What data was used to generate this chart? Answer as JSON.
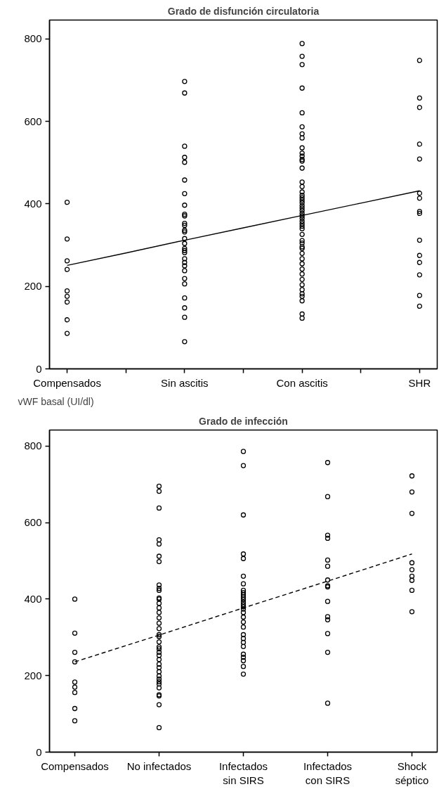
{
  "chart_data": [
    {
      "type": "scatter",
      "title": "Grado de disfunción circulatoria",
      "categories": [
        "Compensados",
        null,
        "Sin ascitis",
        null,
        "Con ascitis",
        null,
        "SHR"
      ],
      "ylim": [
        0,
        846
      ],
      "yticks": [
        0,
        200,
        400,
        600,
        800
      ],
      "marker": "circle",
      "series": [
        {
          "color": "#000000",
          "x": [
            "Compensados",
            "Compensados",
            "Compensados",
            "Compensados",
            "Compensados",
            "Compensados",
            "Compensados",
            "Compensados",
            "Compensados"
          ],
          "values": [
            404,
            315,
            262,
            241,
            189,
            176,
            162,
            119,
            86
          ]
        },
        {
          "color": "#000000",
          "x": [
            "Sin ascitis",
            "Sin ascitis",
            "Sin ascitis",
            "Sin ascitis",
            "Sin ascitis",
            "Sin ascitis",
            "Sin ascitis",
            "Sin ascitis",
            "Sin ascitis",
            "Sin ascitis",
            "Sin ascitis",
            "Sin ascitis",
            "Sin ascitis",
            "Sin ascitis",
            "Sin ascitis",
            "Sin ascitis",
            "Sin ascitis",
            "Sin ascitis",
            "Sin ascitis",
            "Sin ascitis",
            "Sin ascitis",
            "Sin ascitis",
            "Sin ascitis",
            "Sin ascitis",
            "Sin ascitis",
            "Sin ascitis",
            "Sin ascitis",
            "Sin ascitis",
            "Sin ascitis"
          ],
          "values": [
            697,
            669,
            540,
            513,
            501,
            458,
            425,
            397,
            375,
            371,
            353,
            348,
            336,
            332,
            316,
            304,
            292,
            287,
            282,
            267,
            258,
            250,
            238,
            219,
            206,
            172,
            148,
            125,
            66
          ]
        },
        {
          "color": "#000000",
          "x": [
            "Con ascitis",
            "Con ascitis",
            "Con ascitis",
            "Con ascitis",
            "Con ascitis",
            "Con ascitis",
            "Con ascitis",
            "Con ascitis",
            "Con ascitis",
            "Con ascitis",
            "Con ascitis",
            "Con ascitis",
            "Con ascitis",
            "Con ascitis",
            "Con ascitis",
            "Con ascitis",
            "Con ascitis",
            "Con ascitis",
            "Con ascitis",
            "Con ascitis",
            "Con ascitis",
            "Con ascitis",
            "Con ascitis",
            "Con ascitis",
            "Con ascitis",
            "Con ascitis",
            "Con ascitis",
            "Con ascitis",
            "Con ascitis",
            "Con ascitis",
            "Con ascitis",
            "Con ascitis",
            "Con ascitis",
            "Con ascitis",
            "Con ascitis",
            "Con ascitis",
            "Con ascitis",
            "Con ascitis",
            "Con ascitis",
            "Con ascitis",
            "Con ascitis",
            "Con ascitis",
            "Con ascitis",
            "Con ascitis",
            "Con ascitis",
            "Con ascitis",
            "Con ascitis",
            "Con ascitis",
            "Con ascitis"
          ],
          "values": [
            789,
            758,
            738,
            681,
            621,
            587,
            570,
            560,
            536,
            523,
            516,
            508,
            504,
            487,
            453,
            442,
            429,
            421,
            415,
            409,
            403,
            396,
            390,
            384,
            377,
            371,
            365,
            358,
            352,
            346,
            340,
            326,
            311,
            305,
            296,
            292,
            280,
            267,
            255,
            242,
            230,
            217,
            204,
            192,
            182,
            176,
            165,
            133,
            123
          ]
        },
        {
          "color": "#000000",
          "x": [
            "SHR",
            "SHR",
            "SHR",
            "SHR",
            "SHR",
            "SHR",
            "SHR",
            "SHR",
            "SHR",
            "SHR",
            "SHR",
            "SHR",
            "SHR",
            "SHR",
            "SHR"
          ],
          "values": [
            748,
            657,
            634,
            545,
            509,
            426,
            414,
            382,
            377,
            312,
            275,
            258,
            228,
            178,
            152
          ]
        },
        {
          "type": "line",
          "color": "#000000",
          "line_style": "solid",
          "marker": "none",
          "values": [
            251,
            281,
            312,
            342,
            372,
            402,
            432
          ]
        }
      ]
    },
    {
      "type": "scatter",
      "title": "Grado de infección",
      "ylabel": "vWF basal (UI/dl)",
      "categories": [
        "Compensados",
        "No infectados",
        "Infectados\nsin SIRS",
        "Infectados\ncon SIRS",
        "Shock\nséptico"
      ],
      "ylim": [
        0,
        842
      ],
      "yticks": [
        0,
        200,
        400,
        600,
        800
      ],
      "marker": "circle",
      "series": [
        {
          "color": "#000000",
          "x": [
            "Compensados",
            "Compensados",
            "Compensados",
            "Compensados",
            "Compensados",
            "Compensados",
            "Compensados",
            "Compensados",
            "Compensados"
          ],
          "values": [
            400,
            311,
            261,
            236,
            183,
            170,
            156,
            114,
            82
          ]
        },
        {
          "color": "#000000",
          "x": [
            "No infectados",
            "No infectados",
            "No infectados",
            "No infectados",
            "No infectados",
            "No infectados",
            "No infectados",
            "No infectados",
            "No infectados",
            "No infectados",
            "No infectados",
            "No infectados",
            "No infectados",
            "No infectados",
            "No infectados",
            "No infectados",
            "No infectados",
            "No infectados",
            "No infectados",
            "No infectados",
            "No infectados",
            "No infectados",
            "No infectados",
            "No infectados",
            "No infectados",
            "No infectados",
            "No infectados",
            "No infectados",
            "No infectados",
            "No infectados",
            "No infectados",
            "No infectados",
            "No infectados",
            "No infectados",
            "No infectados",
            "No infectados",
            "No infectados",
            "No infectados"
          ],
          "values": [
            695,
            682,
            638,
            555,
            544,
            512,
            498,
            437,
            428,
            423,
            403,
            400,
            389,
            377,
            365,
            351,
            337,
            323,
            307,
            302,
            288,
            275,
            270,
            261,
            253,
            242,
            230,
            221,
            210,
            199,
            191,
            184,
            178,
            168,
            150,
            147,
            124,
            64
          ]
        },
        {
          "color": "#000000",
          "x": [
            "Infectados\nsin SIRS",
            "Infectados\nsin SIRS",
            "Infectados\nsin SIRS",
            "Infectados\nsin SIRS",
            "Infectados\nsin SIRS",
            "Infectados\nsin SIRS",
            "Infectados\nsin SIRS",
            "Infectados\nsin SIRS",
            "Infectados\nsin SIRS",
            "Infectados\nsin SIRS",
            "Infectados\nsin SIRS",
            "Infectados\nsin SIRS",
            "Infectados\nsin SIRS",
            "Infectados\nsin SIRS",
            "Infectados\nsin SIRS",
            "Infectados\nsin SIRS",
            "Infectados\nsin SIRS",
            "Infectados\nsin SIRS",
            "Infectados\nsin SIRS",
            "Infectados\nsin SIRS",
            "Infectados\nsin SIRS",
            "Infectados\nsin SIRS",
            "Infectados\nsin SIRS",
            "Infectados\nsin SIRS",
            "Infectados\nsin SIRS",
            "Infectados\nsin SIRS",
            "Infectados\nsin SIRS",
            "Infectados\nsin SIRS",
            "Infectados\nsin SIRS"
          ],
          "values": [
            786,
            749,
            620,
            518,
            506,
            460,
            440,
            423,
            417,
            411,
            405,
            399,
            392,
            386,
            380,
            374,
            365,
            353,
            340,
            327,
            307,
            297,
            287,
            276,
            256,
            248,
            239,
            224,
            204
          ]
        },
        {
          "color": "#000000",
          "x": [
            "Infectados\ncon SIRS",
            "Infectados\ncon SIRS",
            "Infectados\ncon SIRS",
            "Infectados\ncon SIRS",
            "Infectados\ncon SIRS",
            "Infectados\ncon SIRS",
            "Infectados\ncon SIRS",
            "Infectados\ncon SIRS",
            "Infectados\ncon SIRS",
            "Infectados\ncon SIRS",
            "Infectados\ncon SIRS",
            "Infectados\ncon SIRS",
            "Infectados\ncon SIRS",
            "Infectados\ncon SIRS",
            "Infectados\ncon SIRS"
          ],
          "values": [
            757,
            668,
            567,
            559,
            502,
            486,
            450,
            435,
            432,
            394,
            354,
            346,
            310,
            261,
            128
          ]
        },
        {
          "color": "#000000",
          "x": [
            "Shock\nséptico",
            "Shock\nséptico",
            "Shock\nséptico",
            "Shock\nséptico",
            "Shock\nséptico",
            "Shock\nséptico",
            "Shock\nséptico",
            "Shock\nséptico",
            "Shock\nséptico"
          ],
          "values": [
            722,
            680,
            624,
            495,
            477,
            460,
            449,
            423,
            367
          ]
        },
        {
          "type": "line",
          "color": "#000000",
          "line_style": "dashed",
          "marker": "none",
          "values": [
            236,
            306,
            377,
            447,
            518
          ]
        }
      ]
    }
  ]
}
